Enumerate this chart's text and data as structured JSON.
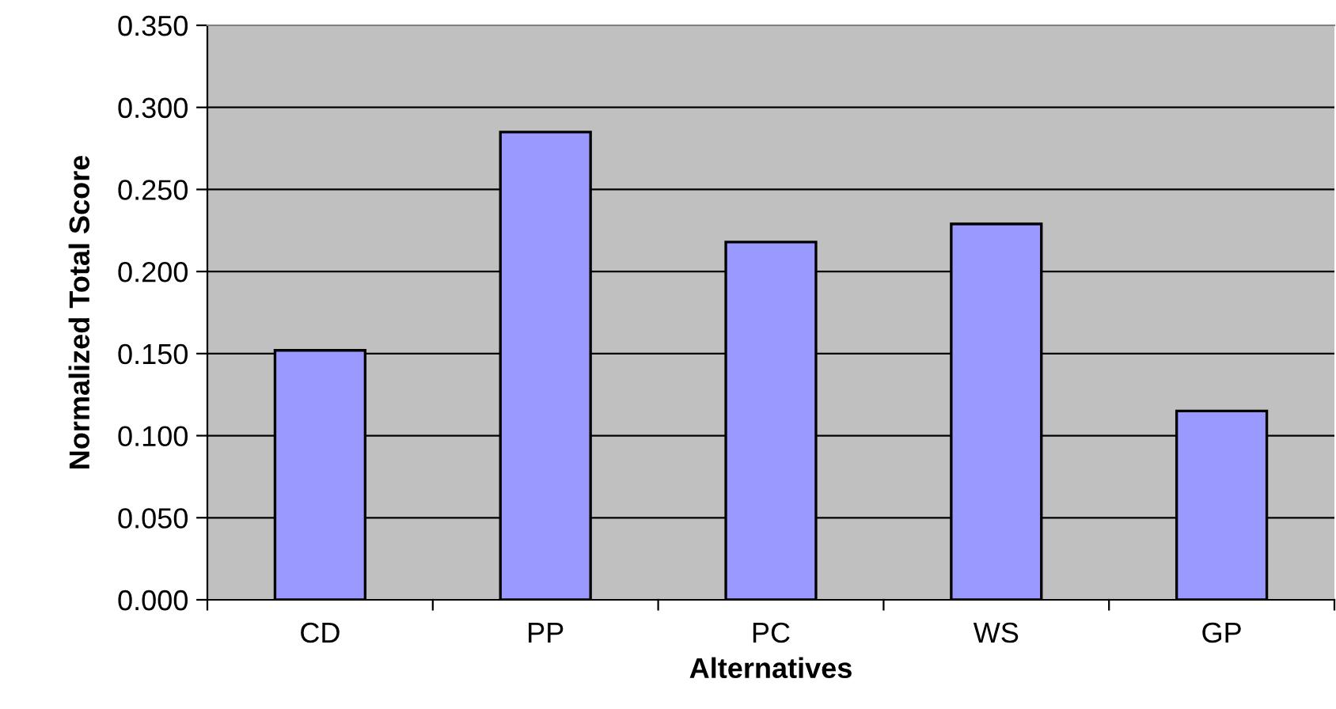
{
  "chart_data": {
    "type": "bar",
    "xlabel": "Alternatives",
    "ylabel": "Normalized Total Score",
    "categories": [
      "CD",
      "PP",
      "PC",
      "WS",
      "GP"
    ],
    "values": [
      0.152,
      0.285,
      0.218,
      0.229,
      0.115
    ],
    "color": "#9999ff",
    "ylim": [
      0,
      0.35
    ],
    "yticks": [
      {
        "value": 0,
        "label": "0.000"
      },
      {
        "value": 0.05,
        "label": "0.050"
      },
      {
        "value": 0.1,
        "label": "0.100"
      },
      {
        "value": 0.15,
        "label": "0.150"
      },
      {
        "value": 0.2,
        "label": "0.200"
      },
      {
        "value": 0.25,
        "label": "0.250"
      },
      {
        "value": 0.3,
        "label": "0.300"
      },
      {
        "value": 0.35,
        "label": "0.350"
      }
    ],
    "grid": "y"
  }
}
